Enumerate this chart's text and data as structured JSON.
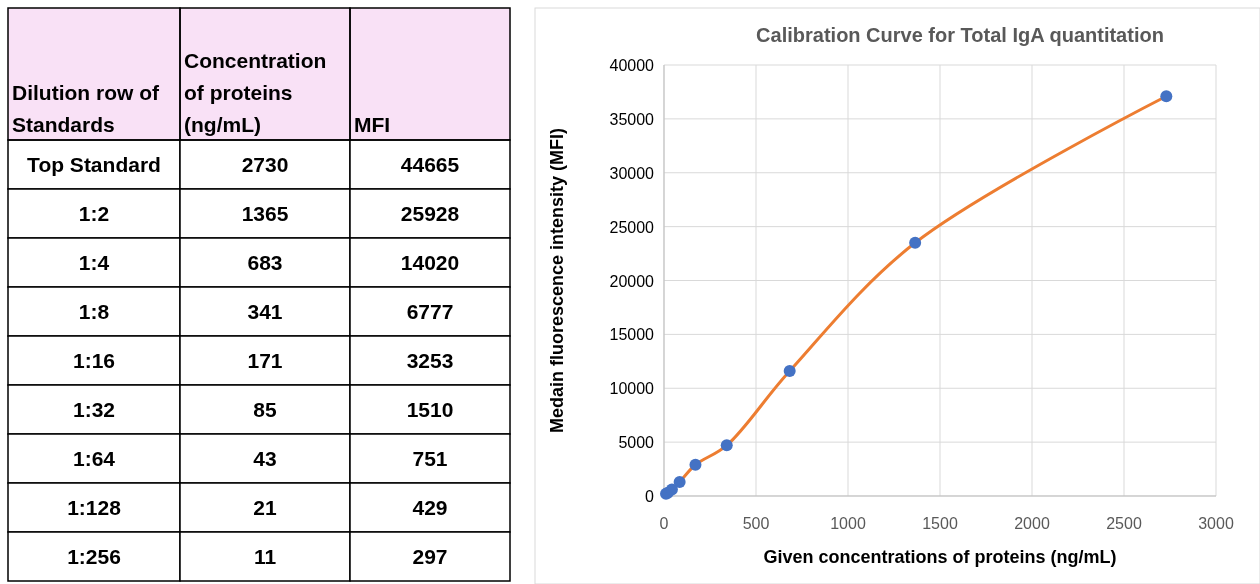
{
  "chart_data": [
    {
      "type": "heatmap",
      "ylabel": "Dilution row of Standards",
      "categories": [
        "Concentration of proteins (ng/mL)",
        "MFI"
      ],
      "y_categories": [
        "Top Standard",
        "1:2",
        "1:4",
        "1:8",
        "1:16",
        "1:32",
        "1:64",
        "1:128",
        "1:256"
      ],
      "cells": [
        [
          2730,
          44665
        ],
        [
          1365,
          25928
        ],
        [
          683,
          14020
        ],
        [
          341,
          6777
        ],
        [
          171,
          3253
        ],
        [
          85,
          1510
        ],
        [
          43,
          751
        ],
        [
          21,
          429
        ],
        [
          11,
          297
        ]
      ],
      "color": "#f9e1f6",
      "data_labels": true
    },
    {
      "type": "line",
      "title": "Calibration Curve for Total IgA quantitation",
      "xlabel": "Given concentrations of proteins (ng/mL)",
      "ylabel": "Medain fluorescence intensity (MFI)",
      "x": [
        11,
        21,
        43,
        85,
        171,
        341,
        683,
        1365,
        2730
      ],
      "series": [
        {
          "type": "line",
          "color": "#ed7d31",
          "marker": "none",
          "values": [
            null,
            null,
            600,
            1300,
            2900,
            4700,
            11600,
            23500,
            37100
          ]
        },
        {
          "type": "scatter",
          "color": "#4472c4",
          "values": [
            200,
            300,
            600,
            1300,
            2900,
            4700,
            11600,
            23500,
            37100
          ]
        }
      ],
      "xlim": [
        0,
        3000
      ],
      "xticks": [
        0,
        500,
        1000,
        1500,
        2000,
        2500,
        3000
      ],
      "ylim": [
        0,
        40000
      ],
      "yticks": [
        0,
        5000,
        10000,
        15000,
        20000,
        25000,
        30000,
        35000,
        40000
      ],
      "grid": true,
      "marker": "circle",
      "line_style": "solid"
    }
  ]
}
